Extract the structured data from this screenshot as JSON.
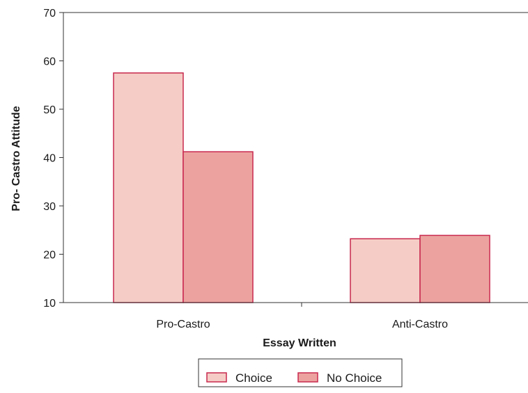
{
  "chart_data": {
    "type": "bar",
    "title": "",
    "xlabel": "Essay Written",
    "ylabel": "Pro- Castro Attitude",
    "categories": [
      "Pro-Castro",
      "Anti-Castro"
    ],
    "series": [
      {
        "name": "Choice",
        "values": [
          57.5,
          23.2
        ],
        "color": "#f5cdc6"
      },
      {
        "name": "No Choice",
        "values": [
          41.2,
          23.9
        ],
        "color": "#eca3a0"
      }
    ],
    "ylim": [
      10,
      70
    ],
    "yticks": [
      10,
      20,
      30,
      40,
      50,
      60,
      70
    ],
    "grid": false,
    "legend": "bottom-center",
    "bar_edge_color": "#c8284e",
    "axis_color": "#333333"
  }
}
